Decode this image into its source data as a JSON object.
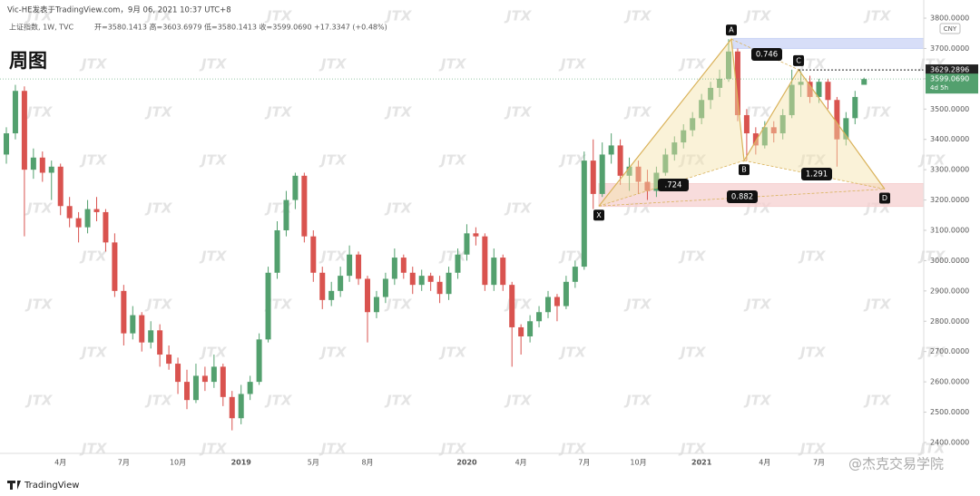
{
  "header": {
    "byline": "Vic-HE发表于TradingView.com，9月 06, 2021 10:37 UTC+8",
    "symbol": "上证指数, 1W, TVC",
    "ohlc": "开=3580.1413 高=3603.6979 低=3580.1413 收=3599.0690 +17.3347 (+0.48%)",
    "label": "周图"
  },
  "chart_data": {
    "type": "candlestick",
    "up_color": "#53a06e",
    "down_color": "#d9534f",
    "currency": "CNY",
    "categories": [
      null,
      null,
      null,
      null,
      null,
      null,
      "4月",
      null,
      null,
      null,
      null,
      null,
      null,
      "7月",
      null,
      null,
      null,
      null,
      null,
      "10月",
      null,
      null,
      null,
      null,
      null,
      null,
      "2019",
      null,
      null,
      null,
      null,
      null,
      null,
      null,
      "5月",
      null,
      null,
      null,
      null,
      null,
      "8月",
      null,
      null,
      null,
      null,
      null,
      null,
      null,
      null,
      null,
      null,
      "2020",
      null,
      null,
      null,
      null,
      null,
      "4月",
      null,
      null,
      null,
      null,
      null,
      null,
      "7月",
      null,
      null,
      null,
      null,
      null,
      "10月",
      null,
      null,
      null,
      null,
      null,
      null,
      "2021",
      null,
      null,
      null,
      null,
      null,
      null,
      "4月",
      null,
      null,
      null,
      null,
      null,
      "7月",
      null,
      null,
      null,
      null,
      null
    ],
    "candles": [
      [
        3350,
        3440,
        3320,
        3420
      ],
      [
        3420,
        3580,
        3400,
        3560
      ],
      [
        3560,
        3575,
        3080,
        3300
      ],
      [
        3300,
        3370,
        3270,
        3340
      ],
      [
        3340,
        3360,
        3260,
        3290
      ],
      [
        3290,
        3330,
        3200,
        3310
      ],
      [
        3310,
        3320,
        3150,
        3180
      ],
      [
        3180,
        3210,
        3110,
        3140
      ],
      [
        3140,
        3160,
        3060,
        3110
      ],
      [
        3110,
        3200,
        3090,
        3170
      ],
      [
        3170,
        3210,
        3130,
        3160
      ],
      [
        3160,
        3170,
        3030,
        3060
      ],
      [
        3060,
        3090,
        2880,
        2900
      ],
      [
        2900,
        2920,
        2720,
        2760
      ],
      [
        2760,
        2850,
        2740,
        2820
      ],
      [
        2820,
        2830,
        2700,
        2730
      ],
      [
        2730,
        2800,
        2710,
        2770
      ],
      [
        2770,
        2790,
        2650,
        2690
      ],
      [
        2690,
        2720,
        2640,
        2660
      ],
      [
        2660,
        2680,
        2560,
        2600
      ],
      [
        2600,
        2640,
        2510,
        2540
      ],
      [
        2540,
        2660,
        2530,
        2620
      ],
      [
        2620,
        2650,
        2570,
        2600
      ],
      [
        2600,
        2690,
        2580,
        2650
      ],
      [
        2650,
        2660,
        2520,
        2550
      ],
      [
        2550,
        2570,
        2440,
        2480
      ],
      [
        2480,
        2590,
        2460,
        2560
      ],
      [
        2560,
        2620,
        2540,
        2600
      ],
      [
        2600,
        2760,
        2590,
        2740
      ],
      [
        2740,
        2980,
        2730,
        2960
      ],
      [
        2960,
        3130,
        2940,
        3100
      ],
      [
        3100,
        3230,
        3080,
        3200
      ],
      [
        3200,
        3290,
        3170,
        3280
      ],
      [
        3280,
        3290,
        3060,
        3080
      ],
      [
        3080,
        3100,
        2930,
        2960
      ],
      [
        2960,
        2980,
        2840,
        2870
      ],
      [
        2870,
        2930,
        2850,
        2900
      ],
      [
        2900,
        2980,
        2880,
        2950
      ],
      [
        2950,
        3050,
        2930,
        3020
      ],
      [
        3020,
        3030,
        2920,
        2940
      ],
      [
        2940,
        2950,
        2730,
        2830
      ],
      [
        2830,
        2900,
        2810,
        2880
      ],
      [
        2880,
        2960,
        2860,
        2940
      ],
      [
        2940,
        3040,
        2920,
        3010
      ],
      [
        3010,
        3020,
        2940,
        2960
      ],
      [
        2960,
        2980,
        2890,
        2920
      ],
      [
        2920,
        2970,
        2900,
        2950
      ],
      [
        2950,
        2960,
        2900,
        2930
      ],
      [
        2930,
        2950,
        2860,
        2890
      ],
      [
        2890,
        2980,
        2870,
        2960
      ],
      [
        2960,
        3040,
        2940,
        3020
      ],
      [
        3020,
        3120,
        3000,
        3090
      ],
      [
        3090,
        3110,
        3050,
        3080
      ],
      [
        3080,
        3090,
        2900,
        2920
      ],
      [
        2920,
        3040,
        2900,
        3010
      ],
      [
        3010,
        3020,
        2900,
        2920
      ],
      [
        2920,
        2930,
        2650,
        2780
      ],
      [
        2780,
        2790,
        2690,
        2750
      ],
      [
        2750,
        2820,
        2730,
        2800
      ],
      [
        2800,
        2850,
        2780,
        2830
      ],
      [
        2830,
        2900,
        2810,
        2880
      ],
      [
        2880,
        2890,
        2800,
        2850
      ],
      [
        2850,
        2950,
        2840,
        2930
      ],
      [
        2930,
        3000,
        2910,
        2980
      ],
      [
        2980,
        3360,
        2970,
        3330
      ],
      [
        3330,
        3400,
        3170,
        3220
      ],
      [
        3220,
        3390,
        3210,
        3350
      ],
      [
        3350,
        3420,
        3320,
        3380
      ],
      [
        3380,
        3400,
        3250,
        3280
      ],
      [
        3280,
        3340,
        3230,
        3310
      ],
      [
        3310,
        3330,
        3220,
        3260
      ],
      [
        3260,
        3300,
        3200,
        3230
      ],
      [
        3230,
        3310,
        3210,
        3290
      ],
      [
        3290,
        3370,
        3280,
        3350
      ],
      [
        3350,
        3410,
        3330,
        3390
      ],
      [
        3390,
        3450,
        3370,
        3430
      ],
      [
        3430,
        3490,
        3410,
        3470
      ],
      [
        3470,
        3550,
        3450,
        3530
      ],
      [
        3530,
        3590,
        3500,
        3570
      ],
      [
        3570,
        3630,
        3540,
        3600
      ],
      [
        3600,
        3731,
        3590,
        3690
      ],
      [
        3690,
        3700,
        3460,
        3480
      ],
      [
        3480,
        3500,
        3330,
        3420
      ],
      [
        3420,
        3440,
        3350,
        3380
      ],
      [
        3380,
        3460,
        3370,
        3440
      ],
      [
        3440,
        3460,
        3390,
        3420
      ],
      [
        3420,
        3500,
        3400,
        3480
      ],
      [
        3480,
        3630,
        3470,
        3580
      ],
      [
        3580,
        3625,
        3540,
        3590
      ],
      [
        3590,
        3610,
        3520,
        3540
      ],
      [
        3540,
        3600,
        3520,
        3590
      ],
      [
        3590,
        3600,
        3500,
        3530
      ],
      [
        3530,
        3540,
        3310,
        3400
      ],
      [
        3400,
        3490,
        3380,
        3470
      ],
      [
        3470,
        3560,
        3450,
        3540
      ],
      [
        3580.1413,
        3603.6979,
        3580.1413,
        3599.069
      ]
    ],
    "ylim": [
      2364,
      3818
    ],
    "yticks": [
      {
        "value": 2400,
        "label": "2400.0000"
      },
      {
        "value": 2500,
        "label": "2500.0000"
      },
      {
        "value": 2600,
        "label": "2600.0000"
      },
      {
        "value": 2700,
        "label": "2700.0000"
      },
      {
        "value": 2800,
        "label": "2800.0000"
      },
      {
        "value": 2900,
        "label": "2900.0000"
      },
      {
        "value": 3000,
        "label": "3000.0000"
      },
      {
        "value": 3100,
        "label": "3100.0000"
      },
      {
        "value": 3200,
        "label": "3200.0000"
      },
      {
        "value": 3300,
        "label": "3300.0000"
      },
      {
        "value": 3400,
        "label": "3400.0000"
      },
      {
        "value": 3500,
        "label": "3500.0000"
      },
      {
        "value": 3600,
        "label": "3600.0000"
      },
      {
        "value": 3700,
        "label": "3700.0000"
      },
      {
        "value": 3800,
        "label": "3800.0000"
      }
    ],
    "price_line": 3629.2896,
    "last_price": {
      "value": 3599.069,
      "label": "3599.0690"
    },
    "countdown": "4d 5h",
    "zones": [
      {
        "from": 3700,
        "to": 3733,
        "color": "#c9d3f5"
      },
      {
        "from": 3179,
        "to": 3254,
        "color": "#f6d0d0"
      }
    ],
    "pattern": {
      "points": [
        {
          "label": "X",
          "price": 3180
        },
        {
          "label": "A",
          "price": 3731
        },
        {
          "label": "B",
          "price": 3330
        },
        {
          "label": "C",
          "price": 3630
        },
        {
          "label": "D",
          "price": 3236
        }
      ],
      "ratios": [
        "0.746",
        ".724",
        "0.882",
        "1.291"
      ]
    }
  },
  "watermark": "JTX",
  "footer": {
    "brand": "TradingView",
    "credit": "@杰克交易学院"
  }
}
